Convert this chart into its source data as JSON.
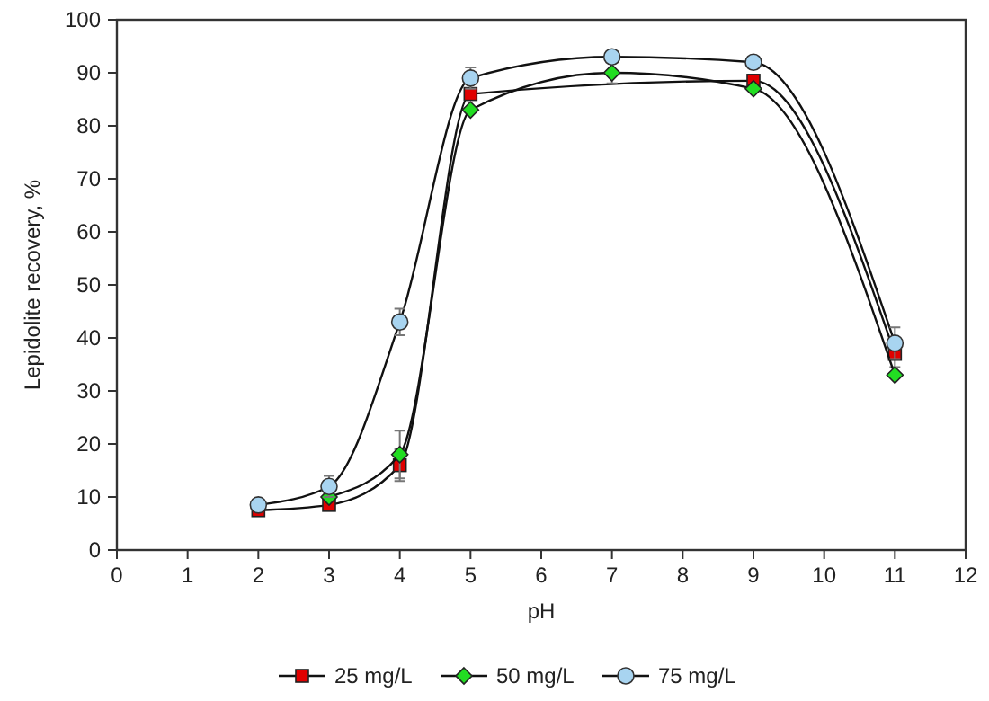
{
  "chart_data": {
    "type": "line",
    "xlabel": "pH",
    "ylabel": "Lepidolite recovery, %",
    "x": [
      2,
      3,
      4,
      5,
      7,
      9,
      11
    ],
    "xlim": [
      0,
      12
    ],
    "xticks": [
      0,
      1,
      2,
      3,
      4,
      5,
      6,
      7,
      8,
      9,
      10,
      11,
      12
    ],
    "ylim": [
      0,
      100
    ],
    "yticks": [
      0,
      10,
      20,
      30,
      40,
      50,
      60,
      70,
      80,
      90,
      100
    ],
    "grid": false,
    "legend": "bottom",
    "series": [
      {
        "name": "25 mg/L",
        "color": "#e00000",
        "marker": "square",
        "values": [
          7.5,
          8.5,
          16,
          86,
          null,
          88.5,
          37
        ],
        "errors": [
          null,
          null,
          3,
          null,
          null,
          null,
          2.5
        ]
      },
      {
        "name": "50 mg/L",
        "color": "#22dd22",
        "marker": "diamond",
        "values": [
          null,
          10,
          18,
          83,
          90,
          87,
          33
        ],
        "errors": [
          null,
          null,
          4.5,
          null,
          2,
          null,
          null
        ]
      },
      {
        "name": "75 mg/L",
        "color": "#a8d4f0",
        "marker": "circle",
        "values": [
          8.5,
          12,
          43,
          89,
          93,
          92,
          39
        ],
        "errors": [
          null,
          2,
          2.5,
          2,
          null,
          null,
          3
        ]
      }
    ]
  }
}
